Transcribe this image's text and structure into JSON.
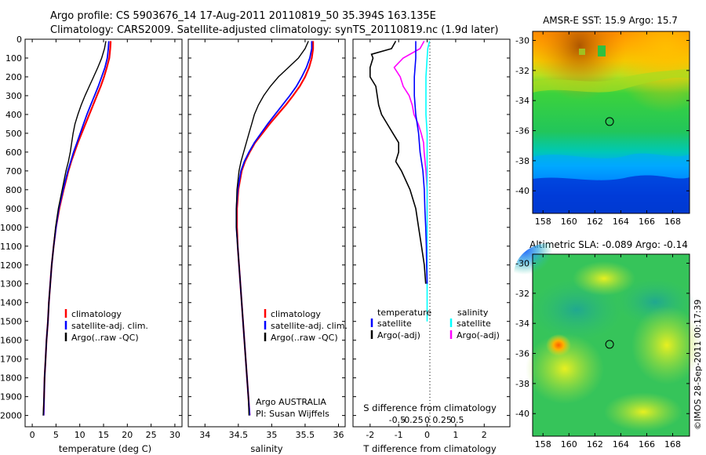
{
  "header": {
    "line1": "Argo profile: CS 5903676_14 17-Aug-2011 20110819_50 35.394S 163.135E",
    "line2": "Climatology: CARS2009. Satellite-adjusted climatology: synTS_20110819.nc (1.9d later)"
  },
  "colors": {
    "climatology": "#ff0000",
    "satellite": "#0000ff",
    "argo": "#000000",
    "salinity_satellite": "#00ffff",
    "salinity_argo": "#ff00ff"
  },
  "depth_axis": {
    "ylim": [
      0,
      2060
    ],
    "tick_values": [
      0,
      100,
      200,
      300,
      400,
      500,
      600,
      700,
      800,
      900,
      1000,
      1100,
      1200,
      1300,
      1400,
      1500,
      1600,
      1700,
      1800,
      1900,
      2000
    ],
    "tick_labels": [
      "0",
      "100",
      "200",
      "300",
      "400",
      "500",
      "600",
      "700",
      "800",
      "900",
      "1000",
      "1100",
      "1200",
      "1300",
      "1400",
      "1500",
      "1600",
      "1700",
      "1800",
      "1900",
      "2000"
    ]
  },
  "chart_data": [
    {
      "type": "line",
      "id": "temperature",
      "xlabel": "temperature (deg C)",
      "xlim": [
        -1.5,
        31.5
      ],
      "xticks": [
        0,
        5,
        10,
        15,
        20,
        25,
        30
      ],
      "xtick_labels": [
        "0",
        "5",
        "10",
        "15",
        "20",
        "25",
        "30"
      ],
      "legend": [
        "climatology",
        "satellite-adj. clim.",
        "Argo(..raw -QC)"
      ],
      "series": [
        {
          "key": "climatology",
          "y": [
            10,
            50,
            100,
            150,
            200,
            250,
            300,
            350,
            400,
            450,
            500,
            550,
            600,
            650,
            700,
            800,
            900,
            1000,
            1100,
            1200,
            1300,
            1400,
            1500,
            1600,
            1700,
            1800,
            1900,
            2000
          ],
          "x": [
            16.5,
            16.4,
            16.2,
            15.7,
            15.1,
            14.4,
            13.6,
            12.8,
            12.0,
            11.2,
            10.4,
            9.6,
            8.9,
            8.2,
            7.6,
            6.6,
            5.7,
            5.0,
            4.5,
            4.1,
            3.8,
            3.5,
            3.3,
            3.0,
            2.8,
            2.6,
            2.5,
            2.4
          ]
        },
        {
          "key": "satellite",
          "y": [
            10,
            50,
            100,
            150,
            200,
            250,
            300,
            350,
            400,
            450,
            500,
            550,
            600,
            650,
            700,
            800,
            900,
            1000,
            1100,
            1200,
            1300,
            1400,
            1500,
            1600,
            1700,
            1800,
            1900,
            2000
          ],
          "x": [
            16.1,
            16.0,
            15.8,
            15.3,
            14.6,
            13.9,
            13.1,
            12.3,
            11.5,
            10.8,
            10.1,
            9.4,
            8.7,
            8.1,
            7.5,
            6.5,
            5.6,
            5.0,
            4.5,
            4.1,
            3.8,
            3.5,
            3.3,
            3.0,
            2.8,
            2.6,
            2.5,
            2.4
          ]
        },
        {
          "key": "argo",
          "y": [
            10,
            50,
            100,
            150,
            200,
            250,
            300,
            350,
            400,
            450,
            500,
            550,
            600,
            650,
            700,
            800,
            900,
            1000,
            1100,
            1200,
            1300,
            1400,
            1500,
            1600,
            1700,
            1800,
            1900,
            2000
          ],
          "x": [
            15.5,
            15.2,
            14.6,
            13.8,
            12.9,
            12.0,
            11.1,
            10.3,
            9.6,
            9.0,
            8.6,
            8.3,
            8.0,
            7.6,
            7.1,
            6.3,
            5.5,
            4.9,
            4.5,
            4.1,
            3.8,
            3.5,
            3.3,
            3.0,
            2.8,
            2.6,
            2.5,
            2.3
          ]
        }
      ]
    },
    {
      "type": "line",
      "id": "salinity",
      "xlabel": "salinity",
      "xlim": [
        33.75,
        36.1
      ],
      "xticks": [
        34,
        34.5,
        35,
        35.5,
        36
      ],
      "xtick_labels": [
        "34",
        "34.5",
        "35",
        "35.5",
        "36"
      ],
      "legend": [
        "climatology",
        "satellite-adj. clim.",
        "Argo(..raw -QC)"
      ],
      "annotation": [
        "Argo AUSTRALIA",
        "PI: Susan Wijffels"
      ],
      "series": [
        {
          "key": "climatology",
          "y": [
            10,
            50,
            100,
            150,
            200,
            250,
            300,
            350,
            400,
            450,
            500,
            550,
            600,
            650,
            700,
            800,
            900,
            1000,
            1100,
            1200,
            1300,
            1400,
            1500,
            1600,
            1700,
            1800,
            1900,
            2000
          ],
          "x": [
            35.62,
            35.62,
            35.6,
            35.56,
            35.5,
            35.42,
            35.32,
            35.21,
            35.09,
            34.97,
            34.86,
            34.75,
            34.67,
            34.6,
            34.55,
            34.5,
            34.48,
            34.48,
            34.49,
            34.51,
            34.53,
            34.55,
            34.57,
            34.59,
            34.61,
            34.63,
            34.65,
            34.67
          ]
        },
        {
          "key": "satellite",
          "y": [
            10,
            50,
            100,
            150,
            200,
            250,
            300,
            350,
            400,
            450,
            500,
            550,
            600,
            650,
            700,
            800,
            900,
            1000,
            1100,
            1200,
            1300,
            1400,
            1500,
            1600,
            1700,
            1800,
            1900,
            2000
          ],
          "x": [
            35.6,
            35.6,
            35.57,
            35.52,
            35.45,
            35.37,
            35.27,
            35.16,
            35.05,
            34.94,
            34.84,
            34.74,
            34.66,
            34.59,
            34.54,
            34.49,
            34.47,
            34.47,
            34.49,
            34.51,
            34.53,
            34.55,
            34.57,
            34.59,
            34.61,
            34.63,
            34.65,
            34.67
          ]
        },
        {
          "key": "argo",
          "y": [
            10,
            50,
            100,
            150,
            200,
            250,
            300,
            350,
            400,
            450,
            500,
            550,
            600,
            650,
            700,
            800,
            900,
            1000,
            1100,
            1200,
            1300,
            1400,
            1500,
            1600,
            1700,
            1800,
            1900,
            2000
          ],
          "x": [
            35.55,
            35.5,
            35.4,
            35.25,
            35.1,
            34.98,
            34.88,
            34.8,
            34.74,
            34.7,
            34.66,
            34.62,
            34.58,
            34.54,
            34.51,
            34.48,
            34.47,
            34.47,
            34.49,
            34.51,
            34.53,
            34.55,
            34.57,
            34.59,
            34.61,
            34.63,
            34.65,
            34.66
          ]
        }
      ]
    },
    {
      "type": "line",
      "id": "differences",
      "xlabel": "T difference from climatology",
      "xlim": [
        -2.6,
        2.9
      ],
      "xticks": [
        -2,
        -1,
        0,
        1,
        2
      ],
      "xtick_labels": [
        "-2",
        "-1",
        "0",
        "1",
        "2"
      ],
      "secondary_xlabel": "S difference from climatology",
      "secondary_xticks": [
        -0.5,
        -0.25,
        0,
        0.25,
        0.5
      ],
      "secondary_xtick_labels": [
        "-0.5",
        "-0.25",
        "0",
        "0.25",
        "0.5"
      ],
      "legend_temperature": [
        "temperature",
        "satellite",
        "Argo(-adj)"
      ],
      "legend_salinity": [
        "salinity",
        "satellite",
        "Argo(-adj)"
      ],
      "series": [
        {
          "key": "t_satellite",
          "y": [
            10,
            50,
            100,
            200,
            300,
            400,
            500,
            600,
            700,
            800,
            900,
            1000,
            1100,
            1200,
            1300
          ],
          "x": [
            -0.4,
            -0.4,
            -0.4,
            -0.45,
            -0.45,
            -0.4,
            -0.3,
            -0.25,
            -0.15,
            -0.1,
            -0.08,
            -0.05,
            -0.03,
            -0.02,
            0.0
          ]
        },
        {
          "key": "t_argo",
          "y": [
            10,
            50,
            80,
            100,
            150,
            200,
            250,
            300,
            350,
            400,
            450,
            500,
            550,
            600,
            650,
            700,
            800,
            900,
            1000,
            1100,
            1200,
            1300
          ],
          "x": [
            -1.1,
            -1.25,
            -1.95,
            -1.9,
            -2.0,
            -2.0,
            -1.8,
            -1.75,
            -1.7,
            -1.6,
            -1.4,
            -1.2,
            -1.0,
            -1.0,
            -1.1,
            -0.9,
            -0.6,
            -0.4,
            -0.3,
            -0.2,
            -0.1,
            -0.05
          ]
        },
        {
          "key": "s_satellite",
          "y": [
            10,
            50,
            100,
            200,
            300,
            400,
            500,
            600,
            700,
            800,
            900,
            1000,
            1100,
            1200,
            1300,
            1400,
            1500
          ],
          "x": [
            0.04,
            0.01,
            0.0,
            -0.02,
            -0.02,
            -0.02,
            0.0,
            0.0,
            0.0,
            0.0,
            0.0,
            0.0,
            0.0,
            0.0,
            0.0,
            0.0,
            0.0
          ]
        },
        {
          "key": "s_argo",
          "y": [
            10,
            50,
            100,
            150,
            200,
            250,
            300,
            350,
            400,
            450,
            500,
            550,
            600,
            700,
            800,
            900,
            1000
          ],
          "x": [
            -0.05,
            -0.12,
            -0.4,
            -0.55,
            -0.45,
            -0.4,
            -0.3,
            -0.25,
            -0.22,
            -0.15,
            -0.1,
            -0.06,
            -0.05,
            -0.02,
            0.0,
            0.0,
            0.0
          ]
        }
      ]
    },
    {
      "type": "heatmap",
      "id": "sst-map",
      "title": "AMSR-E SST: 15.9 Argo: 15.7",
      "xlim": [
        157.2,
        169.3
      ],
      "ylim": [
        -41.5,
        -29.4
      ],
      "xticks": [
        158,
        160,
        162,
        164,
        166,
        168
      ],
      "xtick_labels": [
        "158",
        "160",
        "162",
        "164",
        "166",
        "168"
      ],
      "yticks": [
        -30,
        -32,
        -34,
        -36,
        -38,
        -40
      ],
      "ytick_labels": [
        "-30",
        "-32",
        "-34",
        "-36",
        "-38",
        "-40"
      ],
      "marker": {
        "lon": 163.135,
        "lat": -35.394
      }
    },
    {
      "type": "heatmap",
      "id": "sla-map",
      "title": "Altimetric SLA: -0.089 Argo: -0.14",
      "xlim": [
        157.2,
        169.3
      ],
      "ylim": [
        -41.5,
        -29.4
      ],
      "xticks": [
        158,
        160,
        162,
        164,
        166,
        168
      ],
      "xtick_labels": [
        "158",
        "160",
        "162",
        "164",
        "166",
        "168"
      ],
      "yticks": [
        -30,
        -32,
        -34,
        -36,
        -38,
        -40
      ],
      "ytick_labels": [
        "-30",
        "-32",
        "-34",
        "-36",
        "-38",
        "-40"
      ],
      "marker": {
        "lon": 163.135,
        "lat": -35.394
      }
    }
  ],
  "credit": "©IMOS 28-Sep-2011 00:17:39"
}
